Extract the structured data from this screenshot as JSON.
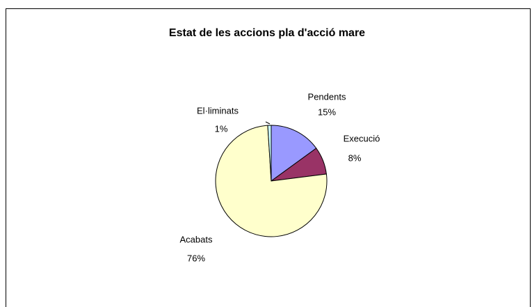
{
  "chart_data": {
    "type": "pie",
    "title": "Estat de les accions pla d'acció mare",
    "categories": [
      "Pendents",
      "Execució",
      "Acabats",
      "El·liminats"
    ],
    "values": [
      15,
      8,
      76,
      1
    ],
    "value_labels": [
      "15%",
      "8%",
      "76%",
      "1%"
    ],
    "colors": [
      "#9999ff",
      "#993366",
      "#ffffcc",
      "#ccffff"
    ]
  }
}
